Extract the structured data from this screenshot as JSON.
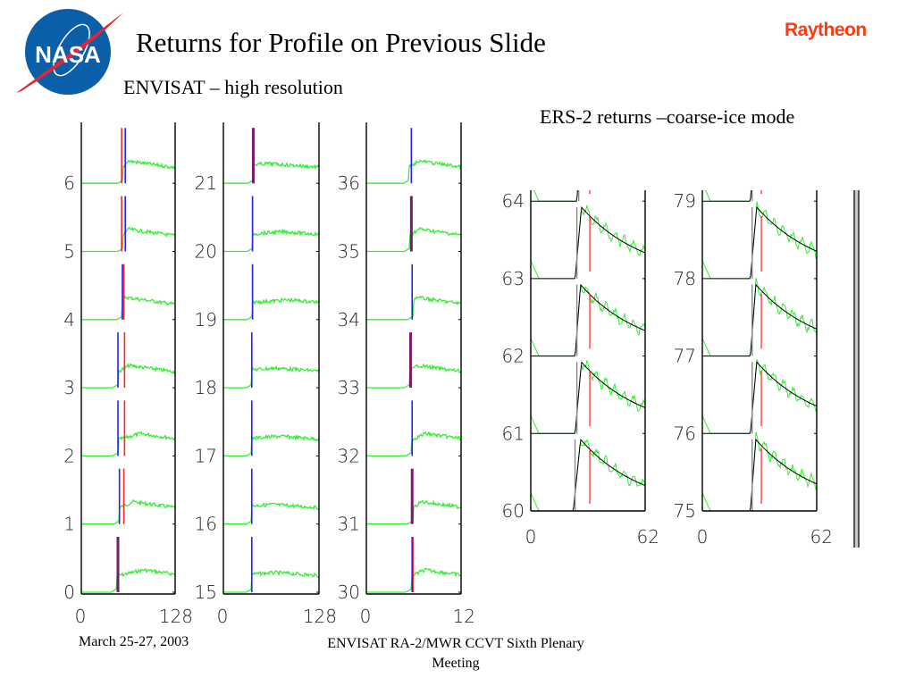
{
  "header": {
    "title": "Returns for Profile on Previous Slide",
    "subtitle": "ENVISAT – high resolution",
    "ers_caption": "ERS-2 returns –coarse-ice mode",
    "logo_left": "NASA",
    "logo_right": "Raytheon"
  },
  "footer": {
    "date": "March 25-27, 2003",
    "meeting": "ENVISAT RA-2/MWR CCVT Sixth Plenary Meeting"
  },
  "colors": {
    "waveform": "#33ee33",
    "fit": "#000000",
    "tracker_red": "#ff2020",
    "tracker_blue": "#2020ff",
    "nasa_blue": "#0b5ea8",
    "nasa_red": "#e32636",
    "raytheon": "#ff3a12"
  },
  "chart_data": [
    {
      "type": "line",
      "title": "ENVISAT – high resolution, panel 1",
      "y_ticks": [
        "0",
        "1",
        "2",
        "3",
        "4",
        "5",
        "6"
      ],
      "x_ticks": [
        "0",
        "128"
      ],
      "xlim": [
        0,
        128
      ],
      "series_names": [
        "waveform",
        "red tracker",
        "blue tracker"
      ],
      "leading_edge_gate": [
        48,
        52,
        50,
        50,
        56,
        57,
        57
      ],
      "red_gate": [
        50,
        58,
        59,
        59,
        58,
        55,
        55
      ],
      "blue_gate": [
        50,
        52,
        50,
        50,
        56,
        60,
        60
      ],
      "peak_gate": [
        85,
        70,
        80,
        65,
        60,
        63,
        63
      ],
      "shape": "peaked"
    },
    {
      "type": "line",
      "title": "ENVISAT – high resolution, panel 2",
      "y_ticks": [
        "15",
        "16",
        "17",
        "18",
        "19",
        "20",
        "21"
      ],
      "x_ticks": [
        "0",
        "128"
      ],
      "xlim": [
        0,
        128
      ],
      "leading_edge_gate": [
        38,
        38,
        38,
        38,
        39,
        39,
        40
      ],
      "red_gate": [
        null,
        null,
        null,
        null,
        null,
        null,
        40
      ],
      "blue_gate": [
        38,
        38,
        38,
        38,
        39,
        39,
        40
      ],
      "peak_gate": [
        70,
        65,
        75,
        70,
        85,
        80,
        60
      ],
      "shape": "flat"
    },
    {
      "type": "line",
      "title": "ENVISAT – high resolution, panel 3",
      "y_ticks": [
        "30",
        "31",
        "32",
        "33",
        "34",
        "35",
        "36"
      ],
      "x_ticks": [
        "0",
        "12"
      ],
      "xlim": [
        0,
        12
      ],
      "leading_edge_gate": [
        5.7,
        5.9,
        5.7,
        5.5,
        5.9,
        5.5,
        5.4
      ],
      "red_gate": [
        5.9,
        5.8,
        null,
        5.6,
        null,
        5.7,
        null
      ],
      "blue_gate": [
        5.8,
        5.8,
        5.8,
        5.6,
        5.8,
        5.7,
        5.7
      ],
      "peak_gate": [
        7.4,
        7.0,
        7.5,
        6.5,
        6.2,
        6.7,
        6.6
      ],
      "shape": "peaked"
    },
    {
      "type": "line",
      "title": "ERS-2 returns –coarse-ice mode, panel 1",
      "y_ticks": [
        "60",
        "61",
        "62",
        "63",
        "64"
      ],
      "x_ticks": [
        "0",
        "62"
      ],
      "xlim": [
        0,
        62
      ],
      "series_names": [
        "waveform",
        "model fit",
        "red tracker"
      ],
      "leading_edge_gate": [
        24,
        25,
        25,
        25,
        26
      ],
      "red_gate": 32,
      "peak_gate": 27,
      "shape": "exponential-decay"
    },
    {
      "type": "line",
      "title": "ERS-2 returns –coarse-ice mode, panel 2",
      "y_ticks": [
        "75",
        "76",
        "77",
        "78",
        "79"
      ],
      "x_ticks": [
        "0",
        "62"
      ],
      "xlim": [
        0,
        62
      ],
      "leading_edge_gate": [
        27,
        27,
        27,
        27,
        27
      ],
      "red_gate": 32,
      "peak_gate": 29,
      "shape": "exponential-decay"
    }
  ]
}
